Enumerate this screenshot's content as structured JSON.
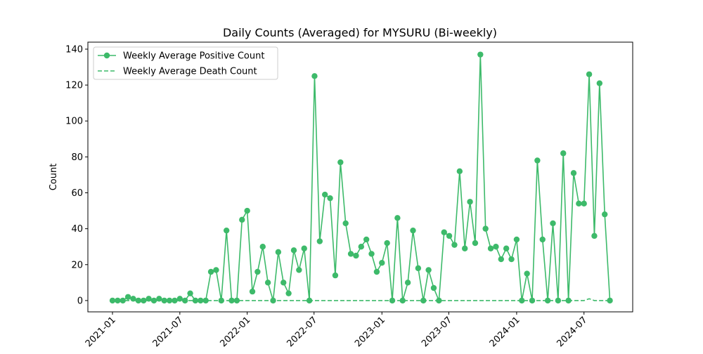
{
  "chart_data": {
    "type": "line",
    "title": "Daily Counts (Averaged) for MYSURU (Bi-weekly)",
    "ylabel": "Count",
    "series": [
      {
        "name": "Weekly Average Positive Count",
        "color": "#3dba6a",
        "style": "solid",
        "marker": true,
        "values": [
          0,
          0,
          0,
          2,
          1,
          0,
          0,
          1,
          0,
          1,
          0,
          0,
          0,
          1,
          0,
          4,
          0,
          0,
          0,
          16,
          17,
          0,
          39,
          0,
          0,
          45,
          50,
          5,
          16,
          30,
          10,
          0,
          27,
          10,
          4,
          28,
          17,
          29,
          0,
          125,
          33,
          59,
          57,
          14,
          77,
          43,
          26,
          25,
          30,
          34,
          26,
          16,
          21,
          32,
          0,
          46,
          0,
          10,
          39,
          18,
          0,
          17,
          7,
          0,
          38,
          36,
          31,
          72,
          29,
          55,
          32,
          137,
          40,
          29,
          30,
          23,
          29,
          23,
          34,
          0,
          15,
          0,
          78,
          34,
          0,
          43,
          0,
          82,
          0,
          71,
          54,
          54,
          126,
          36,
          121,
          48,
          0
        ]
      },
      {
        "name": "Weekly Average Death Count",
        "color": "#3dba6a",
        "style": "dashed",
        "marker": false,
        "values": [
          0,
          0,
          0,
          0,
          0,
          0,
          0,
          0,
          0,
          0,
          0,
          0,
          0,
          0,
          0,
          0,
          0,
          0,
          0,
          0,
          0,
          0,
          0,
          0,
          0,
          0,
          0,
          0,
          0,
          0,
          0,
          0,
          0,
          0,
          0,
          0,
          0,
          0,
          0,
          0,
          0,
          0,
          0,
          0,
          0,
          0,
          0,
          0,
          0,
          0,
          0,
          0,
          0,
          0,
          0,
          0,
          0,
          0,
          0,
          0,
          0,
          0,
          0,
          0,
          0,
          0,
          0,
          0,
          0,
          0,
          0,
          0,
          0,
          0,
          0,
          0,
          0,
          0,
          0,
          0,
          0,
          0,
          0,
          0,
          0,
          0,
          0,
          0,
          0,
          0,
          0,
          0,
          1,
          0,
          0,
          0,
          0
        ]
      }
    ],
    "xlim": [
      -4.75,
      100.4
    ],
    "xticks": [
      {
        "value": 0,
        "label": "2021-01"
      },
      {
        "value": 13,
        "label": "2021-07"
      },
      {
        "value": 26,
        "label": "2022-01"
      },
      {
        "value": 38.9,
        "label": "2022-07"
      },
      {
        "value": 52,
        "label": "2023-01"
      },
      {
        "value": 64.9,
        "label": "2023-07"
      },
      {
        "value": 78,
        "label": "2024-01"
      },
      {
        "value": 91,
        "label": "2024-07"
      }
    ],
    "ylim": [
      -6.3,
      143.9
    ],
    "yticks": [
      0,
      20,
      40,
      60,
      80,
      100,
      120,
      140
    ],
    "legend": "upper left"
  }
}
